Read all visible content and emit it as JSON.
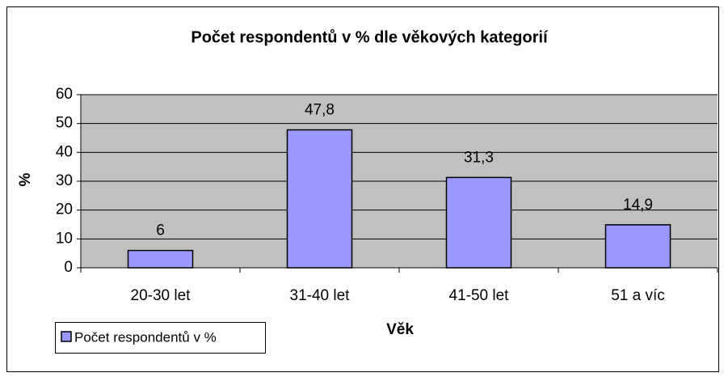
{
  "chart_data": {
    "type": "bar",
    "title": "Počet respondentů v % dle věkových kategorií",
    "x_label": "Věk",
    "y_label": "%",
    "categories": [
      "20-30 let",
      "31-40 let",
      "41-50 let",
      "51 a víc"
    ],
    "series": [
      {
        "name": "Počet respondentů v %",
        "color": "#9999ff",
        "values": [
          6,
          47.8,
          31.3,
          14.9
        ],
        "value_labels": [
          "6",
          "47,8",
          "31,3",
          "14,9"
        ]
      }
    ],
    "ylim": [
      0,
      60
    ],
    "yticks": [
      0,
      10,
      20,
      30,
      40,
      50,
      60
    ],
    "grid": true,
    "legend": "bottom-left"
  }
}
